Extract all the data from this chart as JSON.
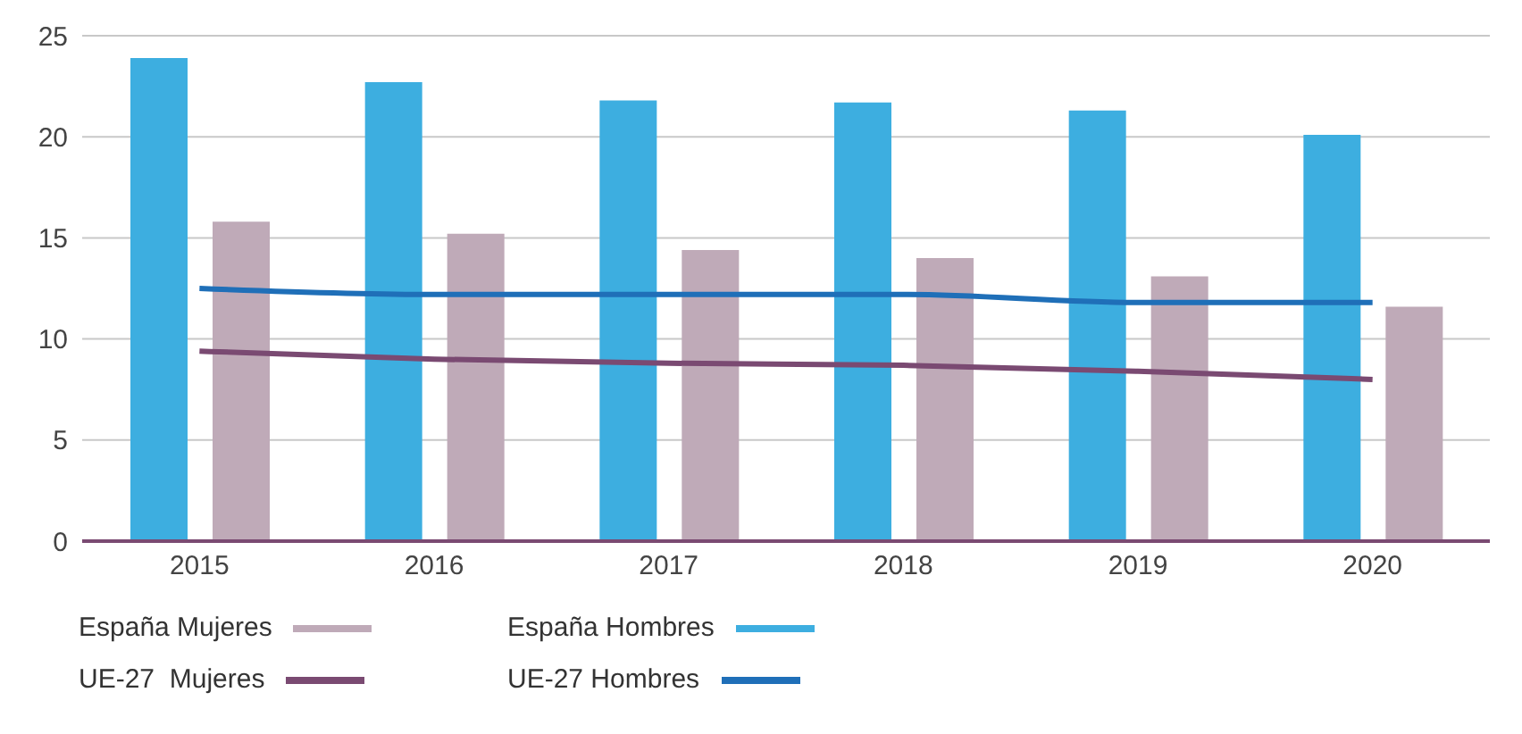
{
  "chart_data": {
    "type": "bar",
    "categories": [
      "2015",
      "2016",
      "2017",
      "2018",
      "2019",
      "2020"
    ],
    "series": [
      {
        "name": "España Mujeres",
        "color": "#bfaab8",
        "values": [
          15.8,
          15.2,
          14.4,
          14.0,
          13.1,
          11.6
        ]
      },
      {
        "name": "España Hombres",
        "color": "#3daee0",
        "values": [
          23.9,
          22.7,
          21.8,
          21.7,
          21.3,
          20.1
        ]
      },
      {
        "name": "UE-27  Mujeres",
        "type": "line",
        "color": "#7a4a72",
        "values": [
          9.4,
          9.0,
          8.8,
          8.7,
          8.4,
          8.0
        ]
      },
      {
        "name": "UE-27 Hombres",
        "type": "line",
        "color": "#1f6fb8",
        "values": [
          12.5,
          12.2,
          12.2,
          12.2,
          11.8,
          11.8
        ]
      }
    ],
    "ylim": [
      0,
      25
    ],
    "yticks": [
      0,
      5,
      10,
      15,
      20,
      25
    ],
    "grid": "y",
    "legend": "bottom",
    "marker": "none",
    "line_style": "solid"
  }
}
